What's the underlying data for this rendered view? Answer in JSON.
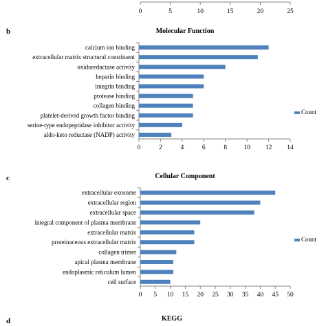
{
  "panels": {
    "b_letter": "b",
    "c_letter": "c",
    "d_letter": "d",
    "d_title": "KEGG"
  },
  "legend_label": "Count",
  "colors": {
    "bar": "#4f81bd",
    "axis": "#868686",
    "legend_swatch": "#4f81bd"
  },
  "chart_data": [
    {
      "type": "bar",
      "orientation": "horizontal",
      "title": "",
      "categories": [],
      "values": [],
      "xticks": [
        0,
        5,
        10,
        15,
        20,
        25
      ],
      "xlim": [
        0,
        25
      ]
    },
    {
      "type": "bar",
      "orientation": "horizontal",
      "title": "Molecular Function",
      "categories": [
        "calcium ion binding",
        "extracellular matrix structural constituent",
        "oxidoreductase activity",
        "heparin binding",
        "integrin binding",
        "protease binding",
        "collagen binding",
        "platelet-derived growth factor binding",
        "serine-type endopeptidase inhibitor activity",
        "aldo-keto reductase (NADP) activity"
      ],
      "values": [
        12,
        11,
        8,
        6,
        6,
        5,
        5,
        5,
        4,
        3
      ],
      "series": [
        {
          "name": "Count"
        }
      ],
      "xticks": [
        0,
        2,
        4,
        6,
        8,
        10,
        12,
        14
      ],
      "xlim": [
        0,
        14
      ],
      "legend": "right"
    },
    {
      "type": "bar",
      "orientation": "horizontal",
      "title": "Cellular Component",
      "categories": [
        "extracellular exosome",
        "extracellular region",
        "extracellular space",
        "integral component of plasma membrane",
        "extracellular matrix",
        "proteinaceous extracellular matrix",
        "collagen trimer",
        "apical plasma membrane",
        "endoplasmic reticulum lumen",
        "cell surface"
      ],
      "values": [
        45,
        40,
        38,
        20,
        18,
        18,
        12,
        11,
        11,
        10
      ],
      "series": [
        {
          "name": "Count"
        }
      ],
      "xticks": [
        0,
        5,
        10,
        15,
        20,
        25,
        30,
        35,
        40,
        45,
        50
      ],
      "xlim": [
        0,
        50
      ],
      "legend": "right"
    }
  ]
}
